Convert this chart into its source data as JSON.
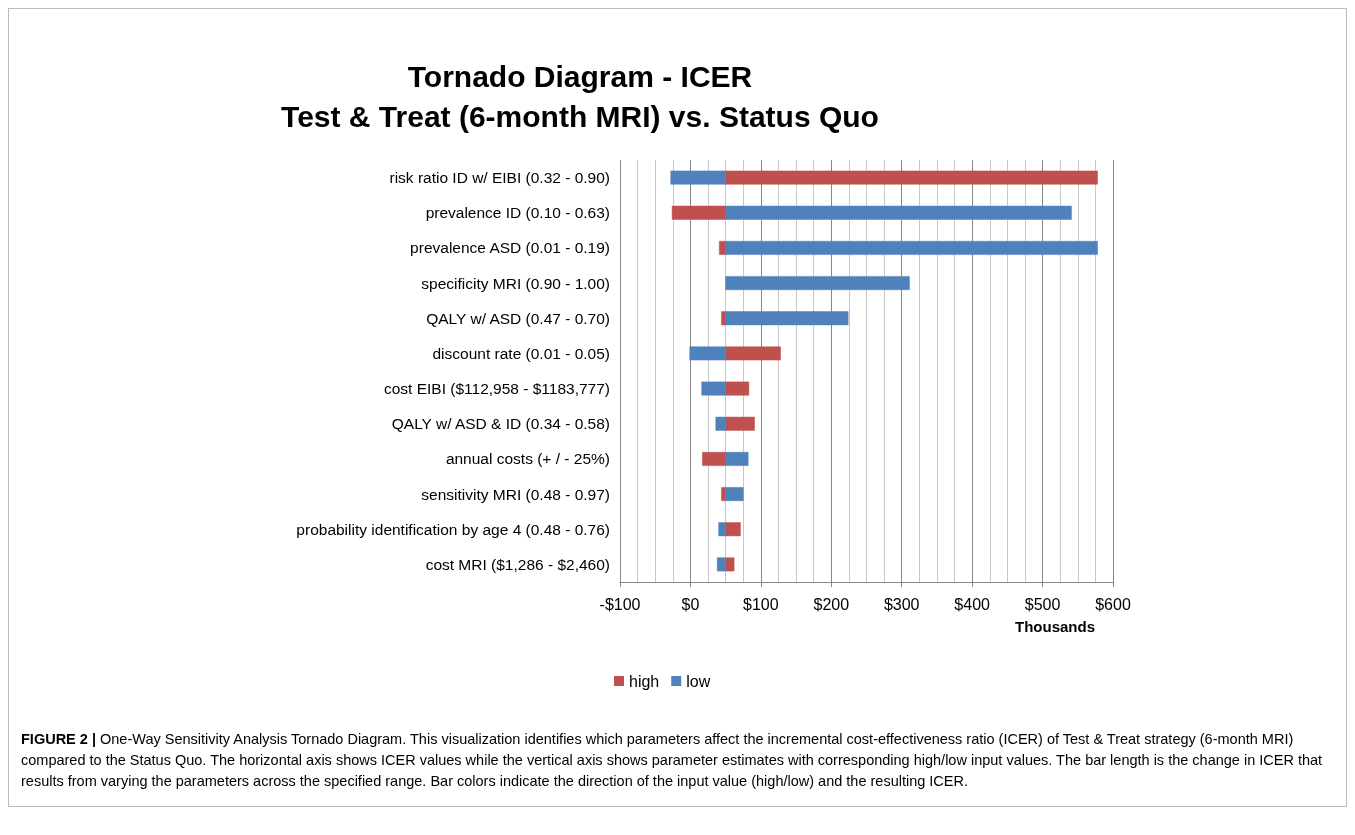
{
  "chart_data": {
    "type": "bar",
    "orientation": "horizontal",
    "title": "Tornado Diagram - ICER\nTest & Treat (6-month MRI) vs. Status Quo",
    "xlabel": "Thousands",
    "categories": [
      "risk ratio ID w/ EIBI (0.32 - 0.90)",
      "prevalence ID (0.10 - 0.63)",
      "prevalence ASD (0.01 - 0.19)",
      "specificity MRI (0.90 - 1.00)",
      "QALY w/ ASD (0.47 - 0.70)",
      "discount rate (0.01 - 0.05)",
      "cost EIBI ($112,958 - $1183,777)",
      "QALY w/ ASD & ID (0.34 - 0.58)",
      "annual costs (+ / - 25%)",
      "sensitivity MRI (0.48 - 0.97)",
      "probability identification by age 4 (0.48 - 0.76)",
      "cost MRI ($1,286 - $2,460)"
    ],
    "series": [
      {
        "name": "high",
        "color": "#c0504d",
        "base": [
          50,
          50,
          50,
          null,
          50,
          50,
          50,
          50,
          50,
          50,
          50,
          50
        ],
        "values": [
          528,
          -76,
          -9,
          null,
          -6,
          78,
          33,
          41,
          -33,
          -6,
          21,
          12
        ]
      },
      {
        "name": "low",
        "color": "#4f81bd",
        "base": [
          50,
          50,
          50,
          50,
          50,
          50,
          50,
          50,
          50,
          50,
          50,
          50
        ],
        "values": [
          -78,
          491,
          528,
          261,
          174,
          -51,
          -34,
          -14,
          32,
          25,
          -10,
          -12
        ]
      }
    ],
    "xlim": [
      -100,
      600
    ],
    "xticks": [
      {
        "value": -100,
        "label": "-$100"
      },
      {
        "value": 0,
        "label": "$0"
      },
      {
        "value": 100,
        "label": "$100"
      },
      {
        "value": 200,
        "label": "$200"
      },
      {
        "value": 300,
        "label": "$300"
      },
      {
        "value": 400,
        "label": "$400"
      },
      {
        "value": 500,
        "label": "$500"
      },
      {
        "value": 600,
        "label": "$600"
      }
    ],
    "grid": "x",
    "legend": "bottom",
    "annotations": [
      "FIGURE 2 | One-Way Sensitivity Analysis Tornado Diagram. This visualization identifies which parameters affect the incremental cost-effectiveness ratio (ICER) of Test & Treat strategy (6-month MRI) compared to the Status Quo. The horizontal axis shows ICER values while the vertical axis shows parameter estimates with corresponding high/low input values. The bar length is the change in ICER that results from varying the parameters across the specified range. Bar colors indicate the direction of the input value (high/low) and the resulting ICER."
    ]
  }
}
